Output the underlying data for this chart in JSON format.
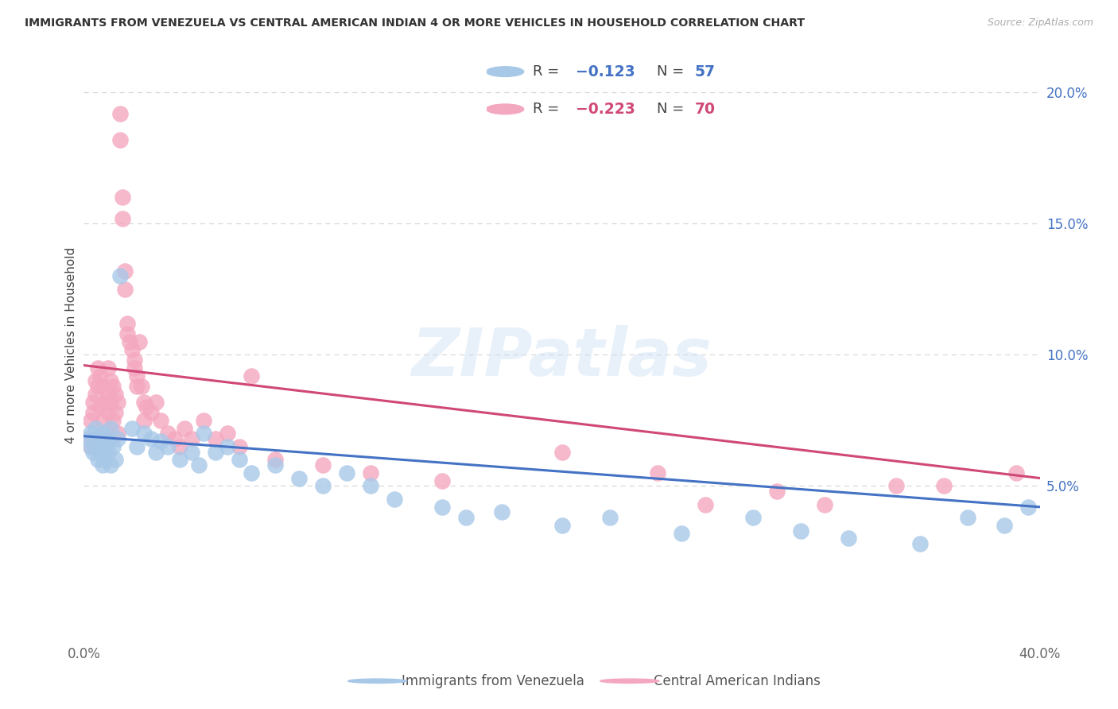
{
  "title": "IMMIGRANTS FROM VENEZUELA VS CENTRAL AMERICAN INDIAN 4 OR MORE VEHICLES IN HOUSEHOLD CORRELATION CHART",
  "source": "Source: ZipAtlas.com",
  "ylabel": "4 or more Vehicles in Household",
  "xlim": [
    0.0,
    0.4
  ],
  "ylim": [
    -0.008,
    0.215
  ],
  "yticks": [
    0.05,
    0.1,
    0.15,
    0.2
  ],
  "ytick_labels": [
    "5.0%",
    "10.0%",
    "15.0%",
    "20.0%"
  ],
  "xticks": [
    0.0,
    0.1,
    0.2,
    0.3,
    0.4
  ],
  "xtick_labels": [
    "0.0%",
    "",
    "",
    "",
    "40.0%"
  ],
  "watermark": "ZIPatlas",
  "legend_blue_r": "-0.123",
  "legend_blue_n": "57",
  "legend_pink_r": "-0.223",
  "legend_pink_n": "70",
  "blue_color": "#a8c8e8",
  "pink_color": "#f4a8c0",
  "blue_line_color": "#4472c4",
  "pink_line_color": "#d04878",
  "blue_scatter": [
    [
      0.002,
      0.068
    ],
    [
      0.003,
      0.07
    ],
    [
      0.003,
      0.065
    ],
    [
      0.004,
      0.067
    ],
    [
      0.004,
      0.063
    ],
    [
      0.005,
      0.072
    ],
    [
      0.005,
      0.068
    ],
    [
      0.006,
      0.065
    ],
    [
      0.006,
      0.06
    ],
    [
      0.007,
      0.068
    ],
    [
      0.007,
      0.063
    ],
    [
      0.008,
      0.07
    ],
    [
      0.008,
      0.058
    ],
    [
      0.009,
      0.065
    ],
    [
      0.009,
      0.06
    ],
    [
      0.01,
      0.067
    ],
    [
      0.01,
      0.063
    ],
    [
      0.011,
      0.058
    ],
    [
      0.011,
      0.072
    ],
    [
      0.012,
      0.065
    ],
    [
      0.013,
      0.06
    ],
    [
      0.014,
      0.068
    ],
    [
      0.015,
      0.13
    ],
    [
      0.02,
      0.072
    ],
    [
      0.022,
      0.065
    ],
    [
      0.025,
      0.07
    ],
    [
      0.028,
      0.068
    ],
    [
      0.03,
      0.063
    ],
    [
      0.032,
      0.067
    ],
    [
      0.035,
      0.065
    ],
    [
      0.04,
      0.06
    ],
    [
      0.045,
      0.063
    ],
    [
      0.048,
      0.058
    ],
    [
      0.05,
      0.07
    ],
    [
      0.055,
      0.063
    ],
    [
      0.06,
      0.065
    ],
    [
      0.065,
      0.06
    ],
    [
      0.07,
      0.055
    ],
    [
      0.08,
      0.058
    ],
    [
      0.09,
      0.053
    ],
    [
      0.1,
      0.05
    ],
    [
      0.11,
      0.055
    ],
    [
      0.12,
      0.05
    ],
    [
      0.13,
      0.045
    ],
    [
      0.15,
      0.042
    ],
    [
      0.16,
      0.038
    ],
    [
      0.175,
      0.04
    ],
    [
      0.2,
      0.035
    ],
    [
      0.22,
      0.038
    ],
    [
      0.25,
      0.032
    ],
    [
      0.28,
      0.038
    ],
    [
      0.3,
      0.033
    ],
    [
      0.32,
      0.03
    ],
    [
      0.35,
      0.028
    ],
    [
      0.37,
      0.038
    ],
    [
      0.385,
      0.035
    ],
    [
      0.395,
      0.042
    ]
  ],
  "pink_scatter": [
    [
      0.002,
      0.068
    ],
    [
      0.003,
      0.075
    ],
    [
      0.003,
      0.065
    ],
    [
      0.004,
      0.082
    ],
    [
      0.004,
      0.078
    ],
    [
      0.005,
      0.09
    ],
    [
      0.005,
      0.085
    ],
    [
      0.006,
      0.095
    ],
    [
      0.006,
      0.088
    ],
    [
      0.007,
      0.092
    ],
    [
      0.007,
      0.08
    ],
    [
      0.008,
      0.088
    ],
    [
      0.008,
      0.075
    ],
    [
      0.009,
      0.082
    ],
    [
      0.009,
      0.07
    ],
    [
      0.01,
      0.095
    ],
    [
      0.01,
      0.085
    ],
    [
      0.01,
      0.078
    ],
    [
      0.011,
      0.09
    ],
    [
      0.011,
      0.082
    ],
    [
      0.012,
      0.088
    ],
    [
      0.012,
      0.075
    ],
    [
      0.013,
      0.085
    ],
    [
      0.013,
      0.078
    ],
    [
      0.014,
      0.082
    ],
    [
      0.014,
      0.07
    ],
    [
      0.015,
      0.192
    ],
    [
      0.015,
      0.182
    ],
    [
      0.016,
      0.16
    ],
    [
      0.016,
      0.152
    ],
    [
      0.017,
      0.132
    ],
    [
      0.017,
      0.125
    ],
    [
      0.018,
      0.112
    ],
    [
      0.018,
      0.108
    ],
    [
      0.019,
      0.105
    ],
    [
      0.02,
      0.102
    ],
    [
      0.021,
      0.098
    ],
    [
      0.021,
      0.095
    ],
    [
      0.022,
      0.092
    ],
    [
      0.022,
      0.088
    ],
    [
      0.023,
      0.105
    ],
    [
      0.024,
      0.088
    ],
    [
      0.025,
      0.082
    ],
    [
      0.025,
      0.075
    ],
    [
      0.026,
      0.08
    ],
    [
      0.028,
      0.078
    ],
    [
      0.03,
      0.082
    ],
    [
      0.032,
      0.075
    ],
    [
      0.035,
      0.07
    ],
    [
      0.038,
      0.068
    ],
    [
      0.04,
      0.065
    ],
    [
      0.042,
      0.072
    ],
    [
      0.045,
      0.068
    ],
    [
      0.05,
      0.075
    ],
    [
      0.055,
      0.068
    ],
    [
      0.06,
      0.07
    ],
    [
      0.065,
      0.065
    ],
    [
      0.07,
      0.092
    ],
    [
      0.08,
      0.06
    ],
    [
      0.1,
      0.058
    ],
    [
      0.12,
      0.055
    ],
    [
      0.15,
      0.052
    ],
    [
      0.2,
      0.063
    ],
    [
      0.24,
      0.055
    ],
    [
      0.26,
      0.043
    ],
    [
      0.29,
      0.048
    ],
    [
      0.31,
      0.043
    ],
    [
      0.34,
      0.05
    ],
    [
      0.36,
      0.05
    ],
    [
      0.39,
      0.055
    ]
  ],
  "blue_line_pts": [
    [
      0.0,
      0.069
    ],
    [
      0.4,
      0.042
    ]
  ],
  "pink_line_pts": [
    [
      0.0,
      0.096
    ],
    [
      0.4,
      0.053
    ]
  ],
  "grid_color": "#d8d8d8",
  "background_color": "#ffffff"
}
